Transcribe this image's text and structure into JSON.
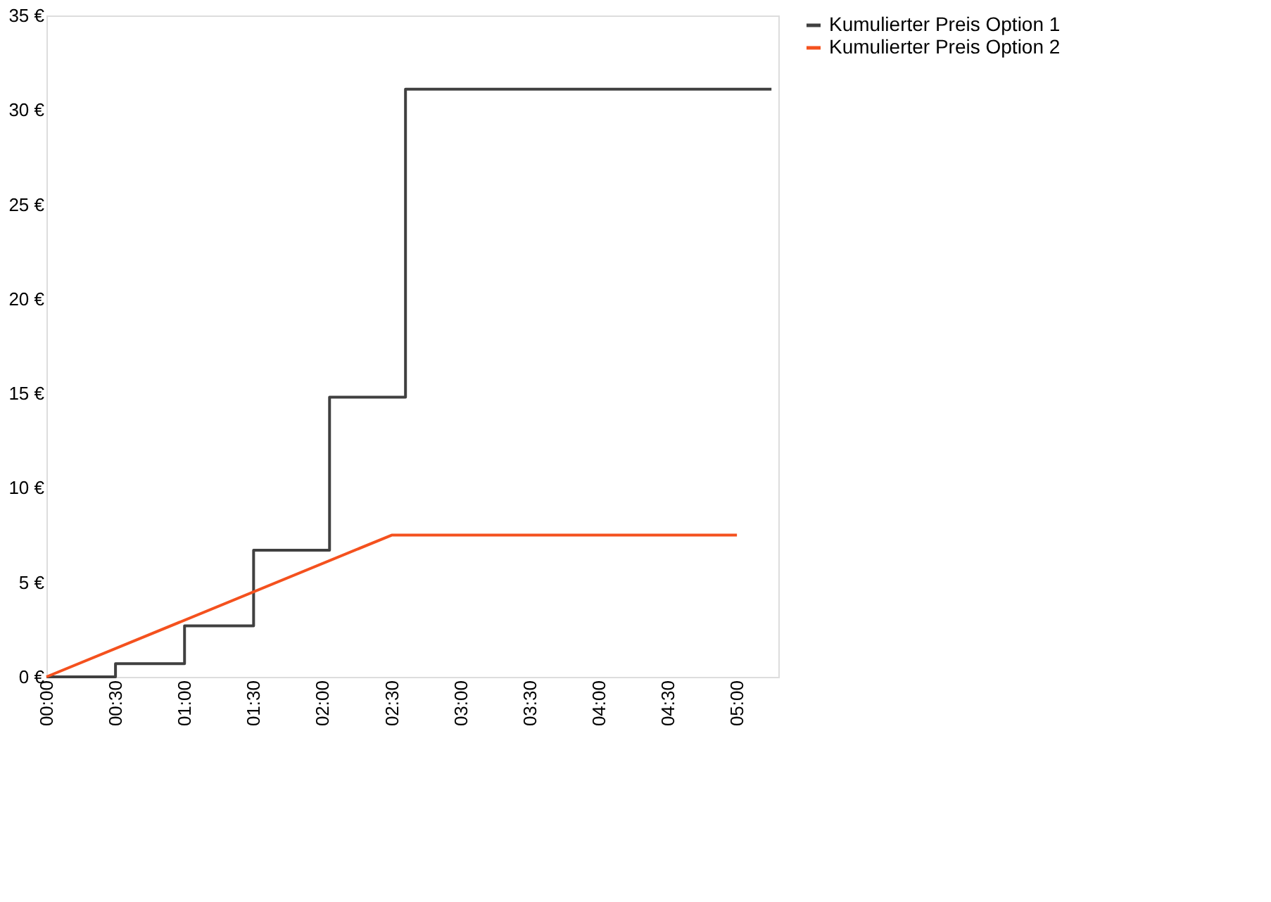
{
  "chart_data": {
    "type": "line",
    "xlim": [
      0,
      5.3
    ],
    "xticks": [
      {
        "value": 0,
        "label": "00:00"
      },
      {
        "value": 0.5,
        "label": "00:30"
      },
      {
        "value": 1,
        "label": "01:00"
      },
      {
        "value": 1.5,
        "label": "01:30"
      },
      {
        "value": 2,
        "label": "02:00"
      },
      {
        "value": 2.5,
        "label": "02:30"
      },
      {
        "value": 3,
        "label": "03:00"
      },
      {
        "value": 3.5,
        "label": "03:30"
      },
      {
        "value": 4,
        "label": "04:00"
      },
      {
        "value": 4.5,
        "label": "04:30"
      },
      {
        "value": 5,
        "label": "05:00"
      }
    ],
    "ylim": [
      0,
      35
    ],
    "yticks": [
      {
        "value": 0,
        "label": "0 €"
      },
      {
        "value": 5,
        "label": "5 €"
      },
      {
        "value": 10,
        "label": "10 €"
      },
      {
        "value": 15,
        "label": "15 €"
      },
      {
        "value": 20,
        "label": "20 €"
      },
      {
        "value": 25,
        "label": "25 €"
      },
      {
        "value": 30,
        "label": "30 €"
      },
      {
        "value": 35,
        "label": "35 €"
      }
    ],
    "grid": false,
    "legend": "right",
    "marker": "none",
    "line_style": "solid",
    "series": [
      {
        "name": "Kumulierter Preis Option 1",
        "type": "step",
        "color": "#404040",
        "x": [
          0,
          0.5,
          1,
          1.5,
          2.05,
          2.6,
          5.25
        ],
        "values": [
          0,
          0.7,
          2.7,
          6.7,
          14.8,
          31.1,
          31.1
        ]
      },
      {
        "name": "Kumulierter Preis Option 2",
        "type": "line",
        "color": "#f4511e",
        "x": [
          0,
          2.5,
          5
        ],
        "values": [
          0,
          7.5,
          7.5
        ]
      }
    ]
  }
}
